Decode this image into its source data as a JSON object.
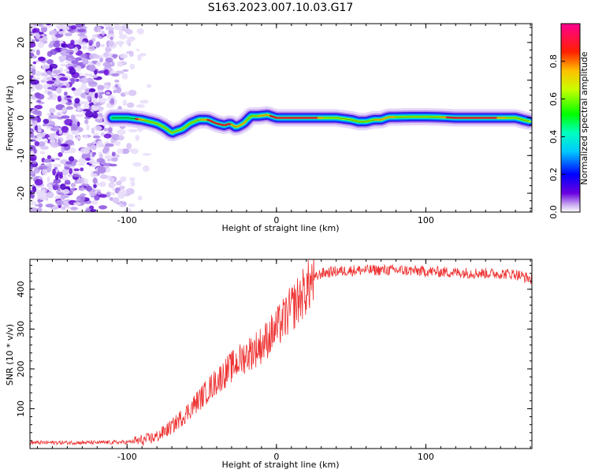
{
  "title": "S163.2023.007.10.03.G17",
  "chart_data": [
    {
      "type": "heatmap",
      "xlabel": "Height of straight line (km)",
      "ylabel": "Frequency (Hz)",
      "xlim": [
        -165,
        171
      ],
      "ylim": [
        -25,
        25
      ],
      "xticks": [
        -100,
        0,
        100
      ],
      "yticks": [
        -20,
        -10,
        0,
        10,
        20
      ],
      "colorbar": {
        "label": "Normalized spectral amplitude",
        "ticks": [
          0.0,
          0.2,
          0.4,
          0.6,
          0.8
        ],
        "range": [
          0,
          1
        ]
      },
      "ridge": {
        "x": [
          -110,
          -100,
          -90,
          -80,
          -75,
          -70,
          -67,
          -63,
          -58,
          -52,
          -46,
          -40,
          -35,
          -31,
          -27,
          -22,
          -17,
          -12,
          -6,
          0,
          10,
          20,
          30,
          40,
          50,
          55,
          60,
          65,
          70,
          75,
          80,
          90,
          100,
          110,
          120,
          130,
          140,
          150,
          160,
          170
        ],
        "y": [
          0,
          0,
          -0.5,
          -1.5,
          -2.5,
          -4,
          -3.5,
          -3,
          -1.5,
          -0.5,
          -0.5,
          -1.5,
          -2,
          -1.5,
          -2.5,
          -1.5,
          0.5,
          0.5,
          0.8,
          0,
          0,
          0,
          0,
          0,
          -0.5,
          -1,
          -1,
          -0.5,
          -0.5,
          0.2,
          0.2,
          0.3,
          0.3,
          0.2,
          0,
          0,
          0,
          0,
          0,
          -1
        ]
      },
      "noise_region_x": [
        -165,
        -95
      ]
    },
    {
      "type": "line",
      "xlabel": "Height of straight line (km)",
      "ylabel": "SNR (10 * v/v)",
      "xlim": [
        -165,
        171
      ],
      "ylim": [
        0,
        475
      ],
      "xticks": [
        -100,
        0,
        100
      ],
      "yticks": [
        100,
        200,
        300,
        400
      ],
      "series": [
        {
          "color": "#ee3333",
          "trend_x": [
            -165,
            -120,
            -100,
            -90,
            -80,
            -70,
            -60,
            -50,
            -40,
            -30,
            -20,
            -10,
            0,
            10,
            20,
            25,
            30,
            40,
            50,
            60,
            80,
            100,
            120,
            140,
            160,
            171
          ],
          "trend_y": [
            15,
            15,
            16,
            20,
            30,
            55,
            90,
            130,
            170,
            205,
            235,
            260,
            300,
            350,
            400,
            425,
            440,
            445,
            447,
            448,
            448,
            445,
            442,
            440,
            438,
            425
          ]
        }
      ]
    }
  ]
}
